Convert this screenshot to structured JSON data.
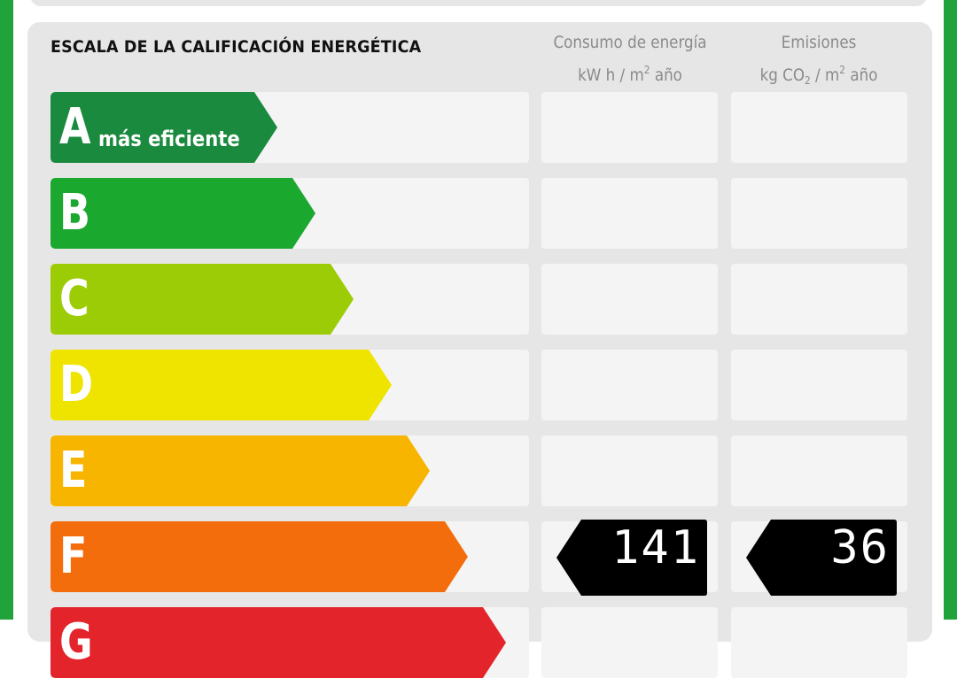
{
  "header": {
    "scale_title": "ESCALA DE LA CALIFICACIÓN ENERGÉTICA",
    "consumption_line1": "Consumo de energía",
    "consumption_unit_a": "kW h / m",
    "consumption_unit_sup": "2",
    "consumption_unit_b": " año",
    "emissions_line1": "Emisiones",
    "emissions_unit_a": "kg CO",
    "emissions_unit_sub": "2",
    "emissions_unit_b": " / m",
    "emissions_unit_sup": "2",
    "emissions_unit_c": " año"
  },
  "ratings": [
    {
      "letter": "A",
      "note": "más eficiente",
      "color": "#1a8a3e"
    },
    {
      "letter": "B",
      "note": "",
      "color": "#1aa82e"
    },
    {
      "letter": "C",
      "note": "",
      "color": "#9ccc06"
    },
    {
      "letter": "D",
      "note": "",
      "color": "#efe400"
    },
    {
      "letter": "E",
      "note": "",
      "color": "#f7b500"
    },
    {
      "letter": "F",
      "note": "",
      "color": "#f46d0c"
    },
    {
      "letter": "G",
      "note": "",
      "color": "#e3242b"
    }
  ],
  "current": {
    "rating": "F",
    "consumption_value": "141",
    "emissions_value": "36"
  },
  "colors": {
    "frame": "#1fa33a",
    "panel": "#e6e6e6",
    "cell": "#f4f4f4",
    "tag": "#000000"
  }
}
